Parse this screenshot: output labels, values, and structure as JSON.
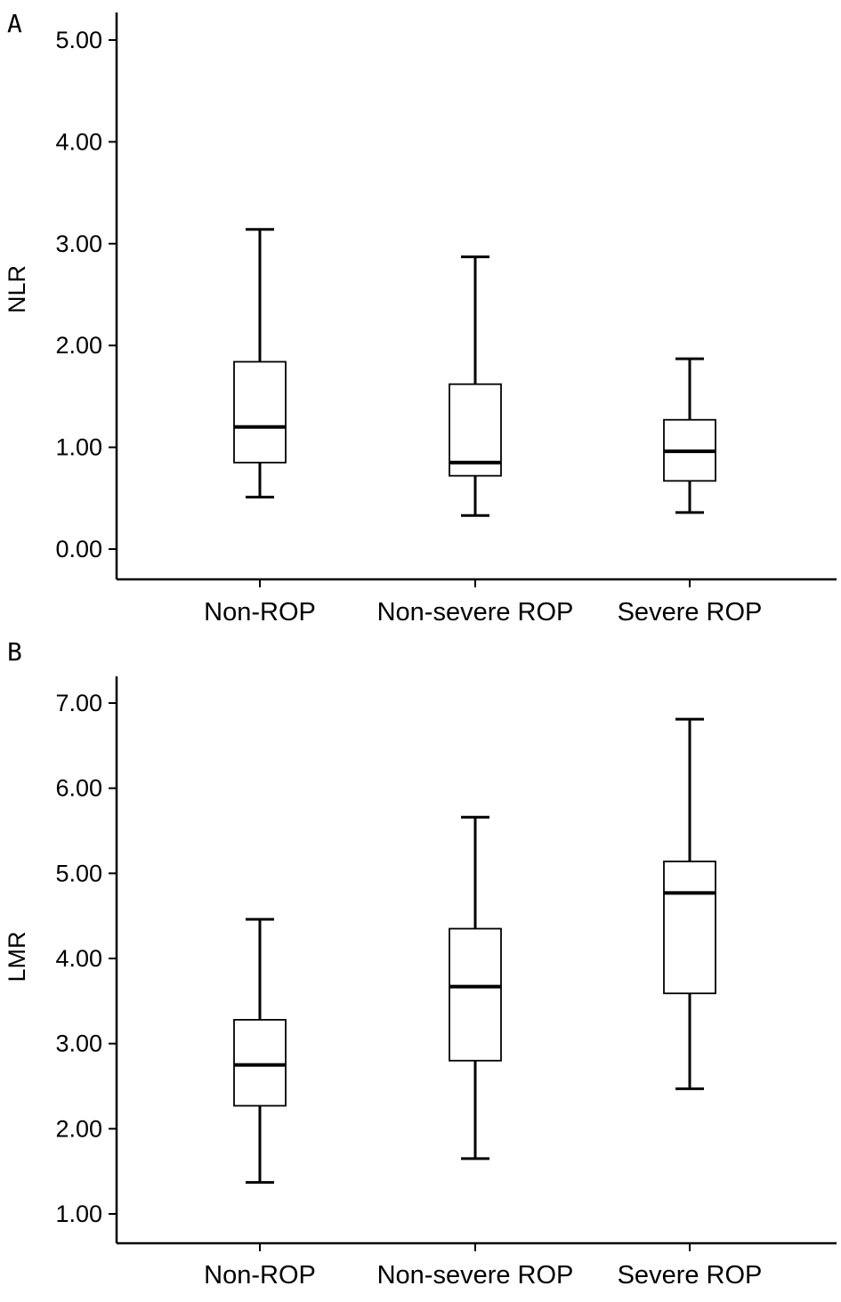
{
  "chart_data": [
    {
      "panel_label": "A",
      "type": "box",
      "ylabel": "NLR",
      "xlabel": "",
      "categories": [
        "Non-ROP",
        "Non-severe ROP",
        "Severe ROP"
      ],
      "yticks": [
        "0.00",
        "1.00",
        "2.00",
        "3.00",
        "4.00",
        "5.00"
      ],
      "ylim": [
        -0.3,
        5.3
      ],
      "boxes": [
        {
          "min": 0.51,
          "q1": 0.85,
          "median": 1.2,
          "q3": 1.84,
          "max": 3.14
        },
        {
          "min": 0.33,
          "q1": 0.72,
          "median": 0.85,
          "q3": 1.62,
          "max": 2.87
        },
        {
          "min": 0.36,
          "q1": 0.67,
          "median": 0.96,
          "q3": 1.27,
          "max": 1.87
        }
      ],
      "grid": false,
      "legend": "none"
    },
    {
      "panel_label": "B",
      "type": "box",
      "ylabel": "LMR",
      "xlabel": "",
      "categories": [
        "Non-ROP",
        "Non-severe ROP",
        "Severe ROP"
      ],
      "yticks": [
        "1.00",
        "2.00",
        "3.00",
        "4.00",
        "5.00",
        "6.00",
        "7.00"
      ],
      "ylim": [
        0.7,
        7.3
      ],
      "boxes": [
        {
          "min": 1.37,
          "q1": 2.27,
          "median": 2.75,
          "q3": 3.28,
          "max": 4.46
        },
        {
          "min": 1.65,
          "q1": 2.8,
          "median": 3.67,
          "q3": 4.35,
          "max": 5.66
        },
        {
          "min": 2.47,
          "q1": 3.59,
          "median": 4.77,
          "q3": 5.14,
          "max": 6.81
        }
      ],
      "grid": false,
      "legend": "none"
    }
  ]
}
